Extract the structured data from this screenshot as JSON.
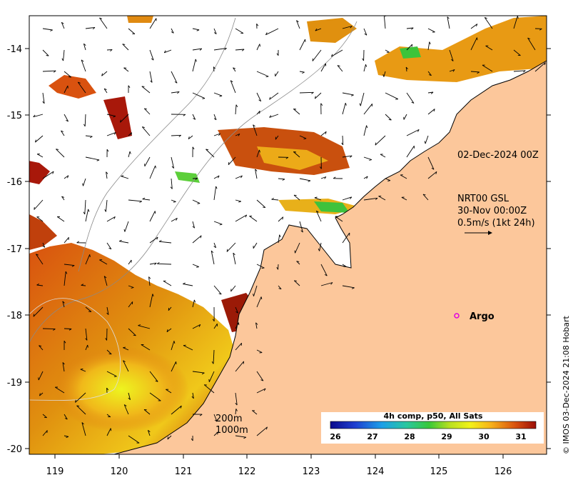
{
  "map": {
    "title_date": "02-Dec-2024 00Z",
    "current_product": {
      "name": "NRT00 GSL",
      "time": "30-Nov 00:00Z",
      "scale": "0.5m/s (1kt 24h)"
    },
    "argo_label": "Argo",
    "depth_contours": [
      "200m",
      "1000m"
    ],
    "colorbar": {
      "title": "4h comp, p50, All Sats",
      "ticks": [
        "26",
        "27",
        "28",
        "29",
        "30",
        "31"
      ],
      "stops": [
        "#0a0a8c",
        "#1f3fd0",
        "#1c9fe8",
        "#29c7a0",
        "#38c83a",
        "#b8e020",
        "#f2f21a",
        "#f7b21a",
        "#d9520f",
        "#9b0d07"
      ]
    },
    "x_ticks": [
      "119",
      "120",
      "121",
      "122",
      "123",
      "124",
      "125",
      "126"
    ],
    "y_ticks": [
      "-14",
      "-15",
      "-16",
      "-17",
      "-18",
      "-19",
      "-20"
    ],
    "credit": "© IMOS 03-Dec-2024 21:08 Hobart",
    "colors": {
      "land": "#fcc79b",
      "ocean": "#ffffff",
      "argo": "#e000e0"
    }
  }
}
